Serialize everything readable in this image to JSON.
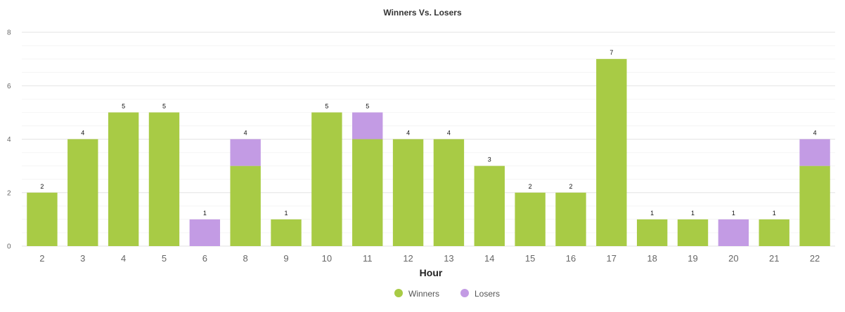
{
  "chart_data": {
    "type": "bar",
    "stacked": true,
    "title": "Winners Vs. Losers",
    "xlabel": "Hour",
    "ylabel": "",
    "ylim": [
      0,
      8
    ],
    "yticks": [
      0,
      2,
      4,
      6,
      8
    ],
    "grid": true,
    "legend_position": "bottom-center",
    "categories": [
      "2",
      "3",
      "4",
      "5",
      "6",
      "8",
      "9",
      "10",
      "11",
      "12",
      "13",
      "14",
      "15",
      "16",
      "17",
      "18",
      "19",
      "20",
      "21",
      "22"
    ],
    "series": [
      {
        "name": "Winners",
        "color": "#a8cb45",
        "values": [
          2,
          4,
          5,
          5,
          0,
          3,
          1,
          5,
          4,
          4,
          4,
          3,
          2,
          2,
          7,
          1,
          1,
          0,
          1,
          3
        ]
      },
      {
        "name": "Losers",
        "color": "#c39be4",
        "values": [
          0,
          0,
          0,
          0,
          1,
          1,
          0,
          0,
          1,
          0,
          0,
          0,
          0,
          0,
          0,
          0,
          0,
          1,
          0,
          1
        ]
      }
    ],
    "totals": [
      2,
      4,
      5,
      5,
      1,
      4,
      1,
      5,
      5,
      4,
      4,
      3,
      2,
      2,
      7,
      1,
      1,
      1,
      1,
      4
    ]
  }
}
